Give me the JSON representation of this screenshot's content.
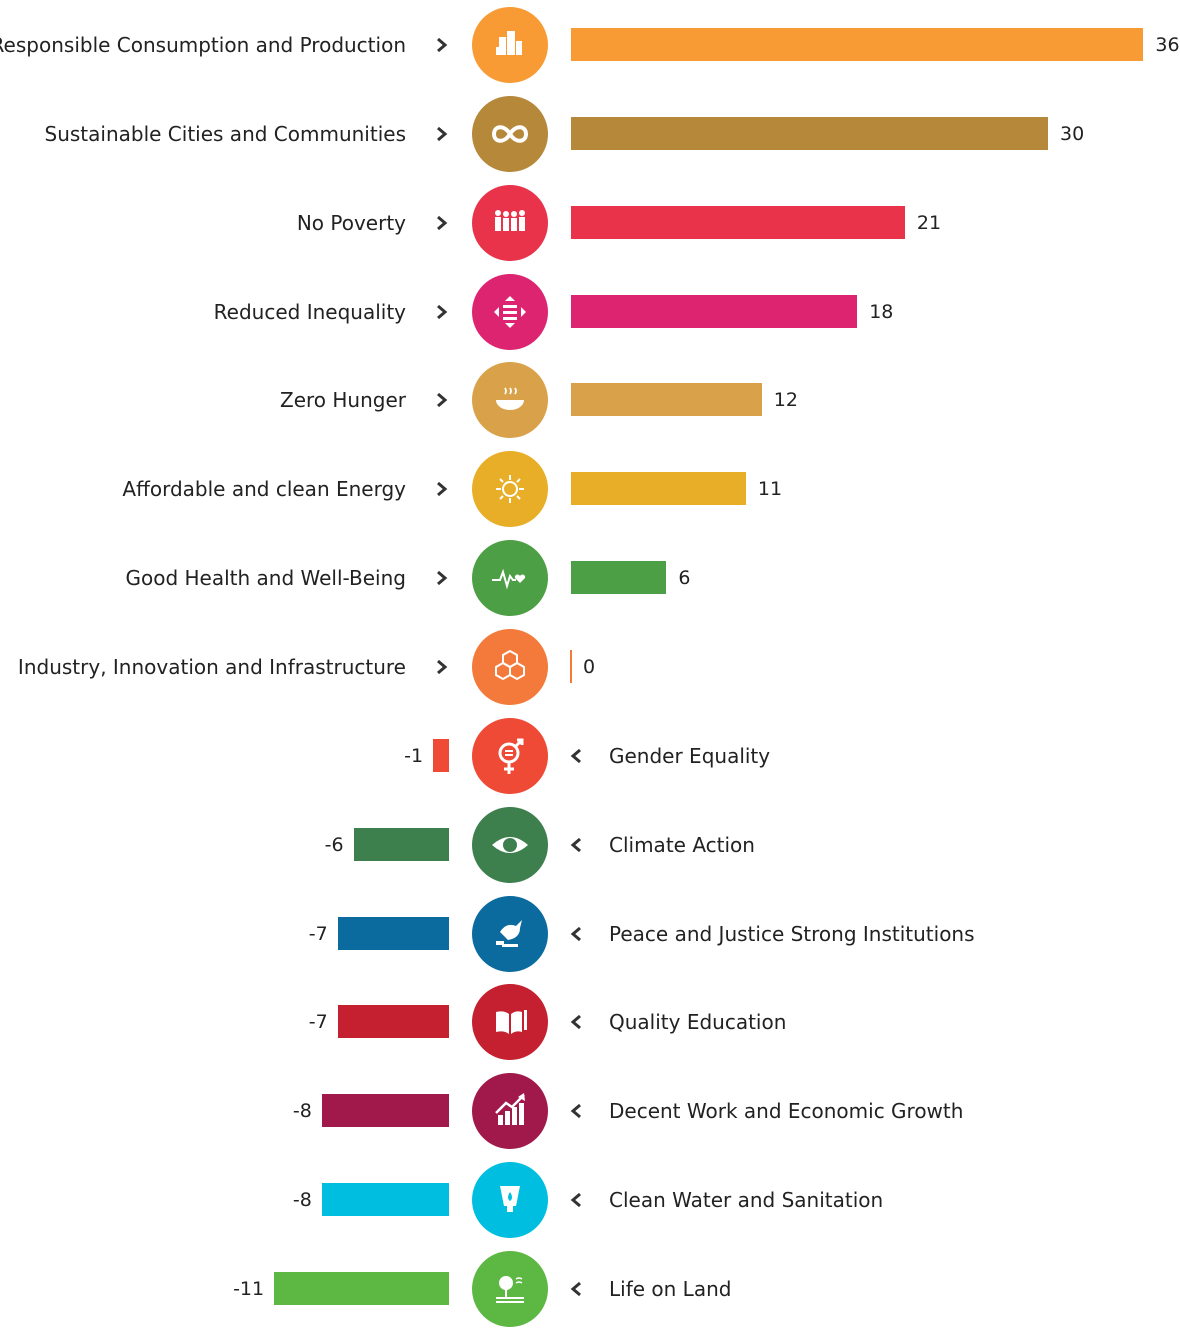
{
  "chart_data": {
    "type": "bar",
    "orientation": "horizontal",
    "categories": [
      "Responsible Consumption and Production",
      "Sustainable Cities and Communities",
      "No Poverty",
      "Reduced Inequality",
      "Zero Hunger",
      "Affordable and clean Energy",
      "Good Health and Well-Being",
      "Industry, Innovation and Infrastructure",
      "Gender Equality",
      "Climate Action",
      "Peace and Justice Strong Institutions",
      "Quality Education",
      "Decent Work and Economic Growth",
      "Clean Water and Sanitation",
      "Life on Land"
    ],
    "values": [
      36,
      30,
      21,
      18,
      12,
      11,
      6,
      0,
      -1,
      -6,
      -7,
      -7,
      -8,
      -8,
      -11
    ],
    "value_labels": [
      "36",
      "30",
      "21",
      "18",
      "12",
      "11",
      "6",
      "0",
      "-1",
      "-6",
      "-7",
      "-7",
      "-8",
      "-8",
      "-11"
    ],
    "colors": [
      "#F89B35",
      "#B5883A",
      "#E9334B",
      "#DD2470",
      "#D9A24A",
      "#E8AE27",
      "#4D9F45",
      "#F47A3B",
      "#EE4A36",
      "#3E7F4E",
      "#0B6B9E",
      "#C5202F",
      "#A0194A",
      "#00BEDF",
      "#5DB843"
    ],
    "icons": [
      "city-buildings-icon",
      "infinity-loop-icon",
      "family-people-icon",
      "equality-arrows-icon",
      "food-bowl-icon",
      "sun-power-icon",
      "heartbeat-icon",
      "cubes-icon",
      "gender-symbol-icon",
      "eye-globe-icon",
      "dove-gavel-icon",
      "book-pencil-icon",
      "growth-chart-icon",
      "water-drop-icon",
      "tree-land-icon"
    ],
    "title": "",
    "xlabel": "",
    "ylabel": "",
    "grid": false
  }
}
